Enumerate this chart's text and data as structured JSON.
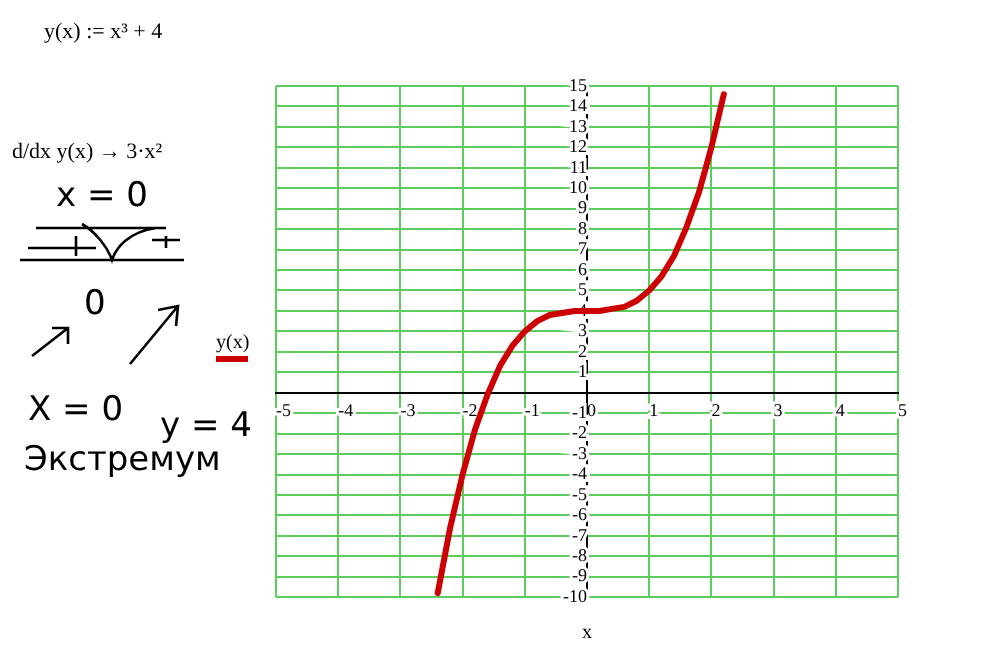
{
  "chart_data": {
    "type": "line",
    "xlabel": "x",
    "annotations": [
      "y(x) := x³ + 4",
      "d/dx y(x) → 3·x²",
      "x = 0",
      "0",
      "X = 0",
      "y = 4",
      "Экстремум"
    ],
    "series": [
      {
        "name": "y(x)",
        "color": "#cc0000",
        "x": [
          -2.4,
          -2.2,
          -2.0,
          -1.8,
          -1.6,
          -1.4,
          -1.2,
          -1.0,
          -0.8,
          -0.6,
          -0.4,
          -0.2,
          0,
          0.2,
          0.4,
          0.6,
          0.8,
          1.0,
          1.2,
          1.4,
          1.6,
          1.8,
          2.0,
          2.2
        ],
        "values": [
          -9.8,
          -6.6,
          -4,
          -1.8,
          -0.1,
          1.3,
          2.3,
          3,
          3.5,
          3.8,
          3.9,
          4,
          4,
          4,
          4.1,
          4.2,
          4.5,
          5,
          5.7,
          6.7,
          8.1,
          9.8,
          12,
          14.6
        ]
      }
    ],
    "xlim": [
      -5,
      5
    ],
    "xticks": [
      -5,
      -4,
      -3,
      -2,
      -1,
      0,
      1,
      2,
      3,
      4,
      5
    ],
    "ylim": [
      -10,
      15
    ],
    "yticks": [
      -10,
      -9,
      -8,
      -7,
      -6,
      -5,
      -4,
      -3,
      -2,
      -1,
      {
        "value": 0,
        "label": null
      },
      1,
      2,
      3,
      4,
      5,
      6,
      7,
      8,
      9,
      10,
      11,
      12,
      13,
      14,
      15
    ],
    "grid": true,
    "legend": "left",
    "marker": "none",
    "line_style": "solid"
  }
}
